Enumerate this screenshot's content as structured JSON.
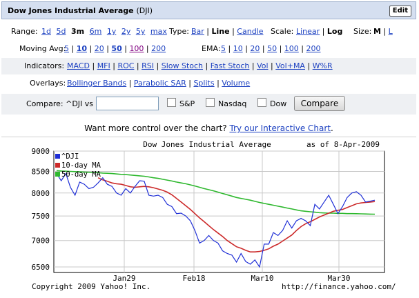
{
  "header": {
    "title": "Dow Jones Industrial Average",
    "symbol": "(DJI)",
    "edit_label": "Edit"
  },
  "range": {
    "label": "Range:",
    "options": [
      "1d",
      "5d",
      "3m",
      "6m",
      "1y",
      "2y",
      "5y",
      "max"
    ],
    "selected": "3m"
  },
  "type": {
    "label": "Type:",
    "options": [
      "Bar",
      "Line",
      "Candle"
    ],
    "selected": "Line"
  },
  "scale": {
    "label": "Scale:",
    "options": [
      "Linear",
      "Log"
    ],
    "selected": "Log"
  },
  "size": {
    "label": "Size:",
    "options": [
      "M",
      "L"
    ],
    "selected": "M"
  },
  "moving_avg": {
    "label": "Moving Avg:",
    "options": [
      "5",
      "10",
      "20",
      "50",
      "100",
      "200"
    ],
    "selected": [
      "10",
      "50"
    ]
  },
  "ema": {
    "label": "EMA:",
    "options": [
      "5",
      "10",
      "20",
      "50",
      "100",
      "200"
    ]
  },
  "indicators": {
    "label": "Indicators:",
    "options": [
      "MACD",
      "MFI",
      "ROC",
      "RSI",
      "Slow Stoch",
      "Fast Stoch",
      "Vol",
      "Vol+MA",
      "W%R"
    ]
  },
  "overlays": {
    "label": "Overlays:",
    "options": [
      "Bollinger Bands",
      "Parabolic SAR",
      "Splits",
      "Volume"
    ]
  },
  "compare": {
    "label": "Compare: ^DJI vs",
    "input_value": "",
    "checks": [
      "S&P",
      "Nasdaq",
      "Dow"
    ],
    "button": "Compare"
  },
  "promo": {
    "text": "Want more control over the chart? ",
    "link": "Try our Interactive Chart",
    "tail": "."
  },
  "chart_data": {
    "type": "line",
    "title": "Dow Jones Industrial Average",
    "as_of": "as of   8-Apr-2009",
    "scale": "log",
    "ylim": [
      6400,
      9000
    ],
    "yticks": [
      9000,
      8500,
      8000,
      7500,
      7000,
      6500
    ],
    "xticks": [
      "Jan29",
      "Feb18",
      "Mar10",
      "Mar30"
    ],
    "grid": true,
    "legend": "top-left",
    "footer_left": "Copyright 2009 Yahoo! Inc.",
    "footer_right": "http://finance.yahoo.com/",
    "series": [
      {
        "name": "^DJI",
        "color": "#1f2fd6",
        "values": [
          8450,
          8280,
          8450,
          8130,
          7950,
          8250,
          8200,
          8100,
          8130,
          8230,
          8350,
          8200,
          8150,
          8000,
          7950,
          8100,
          8000,
          8150,
          8280,
          8270,
          7950,
          7930,
          7950,
          7900,
          7750,
          7700,
          7550,
          7560,
          7500,
          7400,
          7200,
          6950,
          7000,
          7100,
          7000,
          6950,
          6800,
          6750,
          6720,
          6590,
          6750,
          6600,
          6550,
          6630,
          6500,
          6930,
          6930,
          7160,
          7100,
          7200,
          7400,
          7250,
          7400,
          7450,
          7400,
          7300,
          7750,
          7650,
          7800,
          7950,
          7750,
          7550,
          7700,
          7900,
          8000,
          8030,
          7950,
          7800,
          7820,
          7840
        ]
      },
      {
        "name": "10-day MA",
        "color": "#cc2a2a",
        "values": [
          null,
          null,
          null,
          null,
          null,
          null,
          null,
          null,
          null,
          8350,
          8300,
          8270,
          8230,
          8210,
          8200,
          8170,
          8140,
          8130,
          8140,
          8150,
          8140,
          8120,
          8090,
          8060,
          8020,
          7960,
          7880,
          7800,
          7720,
          7640,
          7550,
          7460,
          7380,
          7300,
          7220,
          7150,
          7080,
          7000,
          6940,
          6880,
          6850,
          6810,
          6780,
          6780,
          6790,
          6810,
          6840,
          6890,
          6930,
          6990,
          7050,
          7110,
          7200,
          7280,
          7340,
          7380,
          7430,
          7480,
          7520,
          7560,
          7600,
          7620,
          7640,
          7680,
          7720,
          7760,
          7780,
          7790,
          7800,
          7810
        ]
      },
      {
        "name": "50-day MA",
        "color": "#2eb82e",
        "values": [
          8520,
          8510,
          8505,
          8500,
          8495,
          8490,
          8485,
          8480,
          8475,
          8470,
          8460,
          8455,
          8450,
          8440,
          8430,
          8425,
          8415,
          8405,
          8395,
          8385,
          8370,
          8350,
          8335,
          8315,
          8295,
          8275,
          8250,
          8230,
          8210,
          8185,
          8160,
          8130,
          8100,
          8075,
          8050,
          8020,
          7990,
          7960,
          7930,
          7900,
          7880,
          7860,
          7840,
          7815,
          7790,
          7770,
          7750,
          7730,
          7710,
          7690,
          7670,
          7650,
          7630,
          7610,
          7600,
          7590,
          7580,
          7570,
          7565,
          7560,
          7560,
          7555,
          7555,
          7550,
          7550,
          7548,
          7545,
          7542,
          7540,
          7538
        ]
      }
    ]
  }
}
